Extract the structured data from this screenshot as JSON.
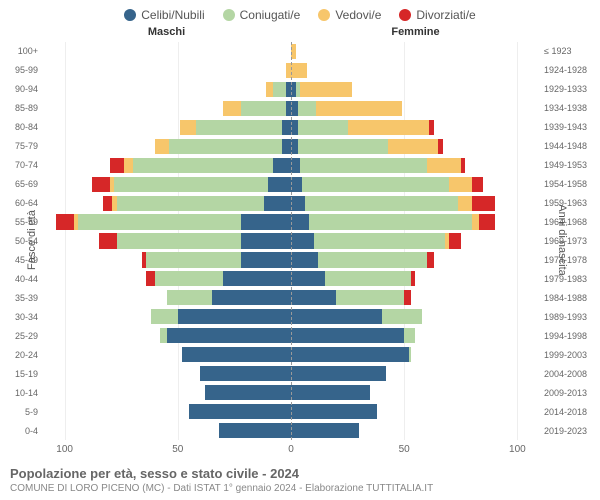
{
  "chart": {
    "type": "population-pyramid",
    "background_color": "#ffffff",
    "grid_color": "#eeeeee",
    "center_line_color": "#999999",
    "axis_text_color": "#666666",
    "legend": [
      {
        "label": "Celibi/Nubili",
        "color": "#36648b"
      },
      {
        "label": "Coniugati/e",
        "color": "#b4d6a4"
      },
      {
        "label": "Vedovi/e",
        "color": "#f7c66b"
      },
      {
        "label": "Divorziati/e",
        "color": "#d62728"
      }
    ],
    "header_male": "Maschi",
    "header_female": "Femmine",
    "y_label_left": "Fasce di età",
    "y_label_right": "Anni di nascita",
    "x_max": 110,
    "x_ticks": [
      {
        "value": -100,
        "label": "100"
      },
      {
        "value": -50,
        "label": "50"
      },
      {
        "value": 0,
        "label": "0"
      },
      {
        "value": 50,
        "label": "50"
      },
      {
        "value": 100,
        "label": "100"
      }
    ],
    "age_groups": [
      {
        "age": "100+",
        "birth": "≤ 1923",
        "male": {
          "single": 0,
          "married": 0,
          "widowed": 0,
          "divorced": 0
        },
        "female": {
          "single": 0,
          "married": 0,
          "widowed": 2,
          "divorced": 0
        }
      },
      {
        "age": "95-99",
        "birth": "1924-1928",
        "male": {
          "single": 0,
          "married": 0,
          "widowed": 2,
          "divorced": 0
        },
        "female": {
          "single": 0,
          "married": 0,
          "widowed": 7,
          "divorced": 0
        }
      },
      {
        "age": "90-94",
        "birth": "1929-1933",
        "male": {
          "single": 2,
          "married": 6,
          "widowed": 3,
          "divorced": 0
        },
        "female": {
          "single": 2,
          "married": 2,
          "widowed": 23,
          "divorced": 0
        }
      },
      {
        "age": "85-89",
        "birth": "1934-1938",
        "male": {
          "single": 2,
          "married": 20,
          "widowed": 8,
          "divorced": 0
        },
        "female": {
          "single": 3,
          "married": 8,
          "widowed": 38,
          "divorced": 0
        }
      },
      {
        "age": "80-84",
        "birth": "1939-1943",
        "male": {
          "single": 4,
          "married": 38,
          "widowed": 7,
          "divorced": 0
        },
        "female": {
          "single": 3,
          "married": 22,
          "widowed": 36,
          "divorced": 2
        }
      },
      {
        "age": "75-79",
        "birth": "1944-1948",
        "male": {
          "single": 4,
          "married": 50,
          "widowed": 6,
          "divorced": 0
        },
        "female": {
          "single": 3,
          "married": 40,
          "widowed": 22,
          "divorced": 2
        }
      },
      {
        "age": "70-74",
        "birth": "1949-1953",
        "male": {
          "single": 8,
          "married": 62,
          "widowed": 4,
          "divorced": 6
        },
        "female": {
          "single": 4,
          "married": 56,
          "widowed": 15,
          "divorced": 2
        }
      },
      {
        "age": "65-69",
        "birth": "1954-1958",
        "male": {
          "single": 10,
          "married": 68,
          "widowed": 2,
          "divorced": 8
        },
        "female": {
          "single": 5,
          "married": 65,
          "widowed": 10,
          "divorced": 5
        }
      },
      {
        "age": "60-64",
        "birth": "1959-1963",
        "male": {
          "single": 12,
          "married": 65,
          "widowed": 2,
          "divorced": 4
        },
        "female": {
          "single": 6,
          "married": 68,
          "widowed": 6,
          "divorced": 10
        }
      },
      {
        "age": "55-59",
        "birth": "1964-1968",
        "male": {
          "single": 22,
          "married": 72,
          "widowed": 2,
          "divorced": 8
        },
        "female": {
          "single": 8,
          "married": 72,
          "widowed": 3,
          "divorced": 7
        }
      },
      {
        "age": "50-54",
        "birth": "1969-1973",
        "male": {
          "single": 22,
          "married": 55,
          "widowed": 0,
          "divorced": 8
        },
        "female": {
          "single": 10,
          "married": 58,
          "widowed": 2,
          "divorced": 5
        }
      },
      {
        "age": "45-49",
        "birth": "1974-1978",
        "male": {
          "single": 22,
          "married": 42,
          "widowed": 0,
          "divorced": 2
        },
        "female": {
          "single": 12,
          "married": 48,
          "widowed": 0,
          "divorced": 3
        }
      },
      {
        "age": "40-44",
        "birth": "1979-1983",
        "male": {
          "single": 30,
          "married": 30,
          "widowed": 0,
          "divorced": 4
        },
        "female": {
          "single": 15,
          "married": 38,
          "widowed": 0,
          "divorced": 2
        }
      },
      {
        "age": "35-39",
        "birth": "1984-1988",
        "male": {
          "single": 35,
          "married": 20,
          "widowed": 0,
          "divorced": 0
        },
        "female": {
          "single": 20,
          "married": 30,
          "widowed": 0,
          "divorced": 3
        }
      },
      {
        "age": "30-34",
        "birth": "1989-1993",
        "male": {
          "single": 50,
          "married": 12,
          "widowed": 0,
          "divorced": 0
        },
        "female": {
          "single": 40,
          "married": 18,
          "widowed": 0,
          "divorced": 0
        }
      },
      {
        "age": "25-29",
        "birth": "1994-1998",
        "male": {
          "single": 55,
          "married": 3,
          "widowed": 0,
          "divorced": 0
        },
        "female": {
          "single": 50,
          "married": 5,
          "widowed": 0,
          "divorced": 0
        }
      },
      {
        "age": "20-24",
        "birth": "1999-2003",
        "male": {
          "single": 48,
          "married": 0,
          "widowed": 0,
          "divorced": 0
        },
        "female": {
          "single": 52,
          "married": 1,
          "widowed": 0,
          "divorced": 0
        }
      },
      {
        "age": "15-19",
        "birth": "2004-2008",
        "male": {
          "single": 40,
          "married": 0,
          "widowed": 0,
          "divorced": 0
        },
        "female": {
          "single": 42,
          "married": 0,
          "widowed": 0,
          "divorced": 0
        }
      },
      {
        "age": "10-14",
        "birth": "2009-2013",
        "male": {
          "single": 38,
          "married": 0,
          "widowed": 0,
          "divorced": 0
        },
        "female": {
          "single": 35,
          "married": 0,
          "widowed": 0,
          "divorced": 0
        }
      },
      {
        "age": "5-9",
        "birth": "2014-2018",
        "male": {
          "single": 45,
          "married": 0,
          "widowed": 0,
          "divorced": 0
        },
        "female": {
          "single": 38,
          "married": 0,
          "widowed": 0,
          "divorced": 0
        }
      },
      {
        "age": "0-4",
        "birth": "2019-2023",
        "male": {
          "single": 32,
          "married": 0,
          "widowed": 0,
          "divorced": 0
        },
        "female": {
          "single": 30,
          "married": 0,
          "widowed": 0,
          "divorced": 0
        }
      }
    ]
  },
  "footer": {
    "title": "Popolazione per età, sesso e stato civile - 2024",
    "subtitle": "COMUNE DI LORO PICENO (MC) - Dati ISTAT 1° gennaio 2024 - Elaborazione TUTTITALIA.IT"
  }
}
